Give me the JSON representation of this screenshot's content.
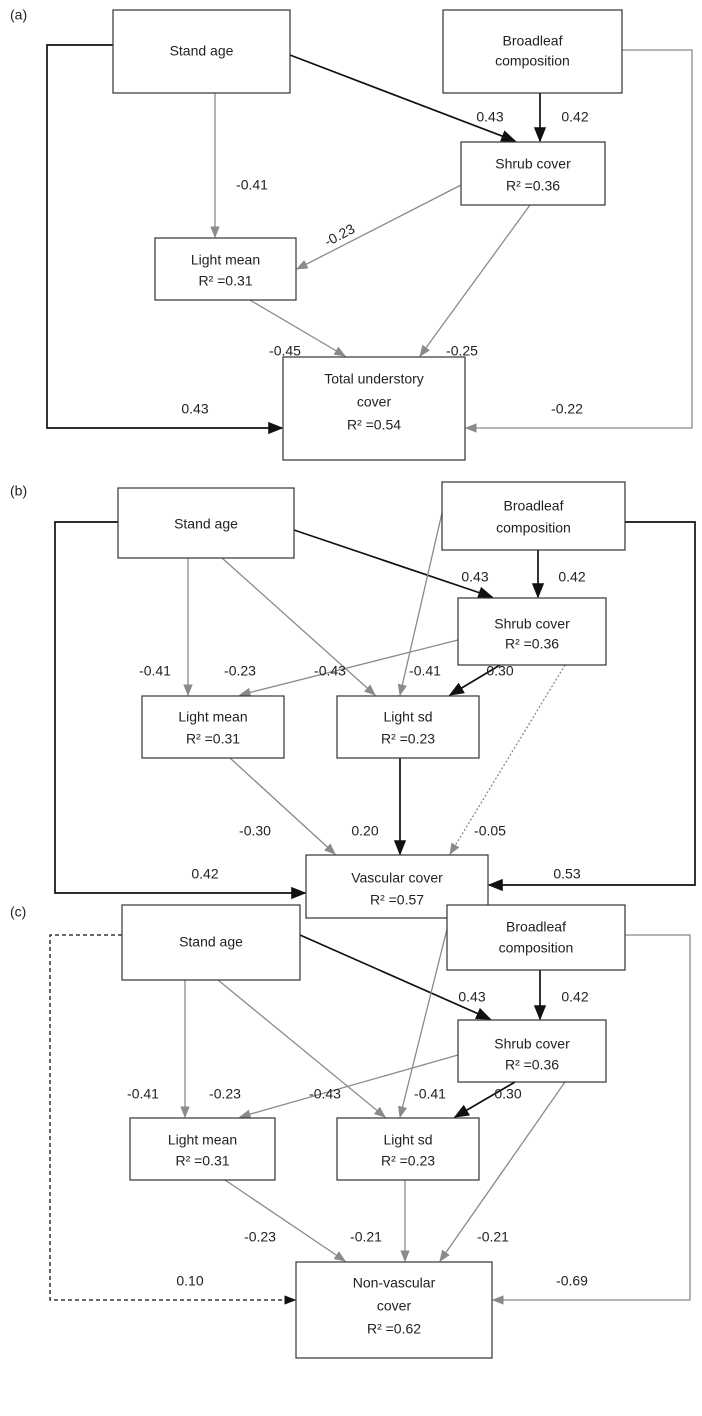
{
  "panels": [
    {
      "label": "(a)",
      "nodes": [
        {
          "lines": [
            "Stand age"
          ]
        },
        {
          "lines": [
            "Broadleaf",
            "composition"
          ]
        },
        {
          "lines": [
            "Shrub cover",
            "R² =0.36"
          ]
        },
        {
          "lines": [
            "Light mean",
            "R² =0.31"
          ]
        },
        {
          "lines": [
            "Total understory",
            "cover",
            "R² =0.54"
          ]
        }
      ],
      "edges": [
        {
          "label": "0.43"
        },
        {
          "label": "0.42"
        },
        {
          "label": "-0.41"
        },
        {
          "label": "-0.23"
        },
        {
          "label": "-0.45"
        },
        {
          "label": "-0.25"
        },
        {
          "label": "0.43"
        },
        {
          "label": "-0.22"
        }
      ]
    },
    {
      "label": "(b)",
      "nodes": [
        {
          "lines": [
            "Stand age"
          ]
        },
        {
          "lines": [
            "Broadleaf",
            "composition"
          ]
        },
        {
          "lines": [
            "Shrub cover",
            "R² =0.36"
          ]
        },
        {
          "lines": [
            "Light mean",
            "R² =0.31"
          ]
        },
        {
          "lines": [
            "Light sd",
            "R² =0.23"
          ]
        },
        {
          "lines": [
            "Vascular cover",
            "R² =0.57"
          ]
        }
      ],
      "edges": [
        {
          "label": "0.43"
        },
        {
          "label": "0.42"
        },
        {
          "label": "-0.41"
        },
        {
          "label": "-0.23"
        },
        {
          "label": "-0.43"
        },
        {
          "label": "-0.41"
        },
        {
          "label": "0.30"
        },
        {
          "label": "-0.30"
        },
        {
          "label": "0.20"
        },
        {
          "label": "-0.05"
        },
        {
          "label": "0.42"
        },
        {
          "label": "0.53"
        }
      ]
    },
    {
      "label": "(c)",
      "nodes": [
        {
          "lines": [
            "Stand age"
          ]
        },
        {
          "lines": [
            "Broadleaf",
            "composition"
          ]
        },
        {
          "lines": [
            "Shrub cover",
            "R² =0.36"
          ]
        },
        {
          "lines": [
            "Light mean",
            "R² =0.31"
          ]
        },
        {
          "lines": [
            "Light sd",
            "R² =0.23"
          ]
        },
        {
          "lines": [
            "Non-vascular",
            "cover",
            "R² =0.62"
          ]
        }
      ],
      "edges": [
        {
          "label": "0.43"
        },
        {
          "label": "0.42"
        },
        {
          "label": "-0.41"
        },
        {
          "label": "-0.23"
        },
        {
          "label": "-0.43"
        },
        {
          "label": "-0.41"
        },
        {
          "label": "0.30"
        },
        {
          "label": "-0.23"
        },
        {
          "label": "-0.21"
        },
        {
          "label": "-0.21"
        },
        {
          "label": "0.10"
        },
        {
          "label": "-0.69"
        }
      ]
    }
  ]
}
